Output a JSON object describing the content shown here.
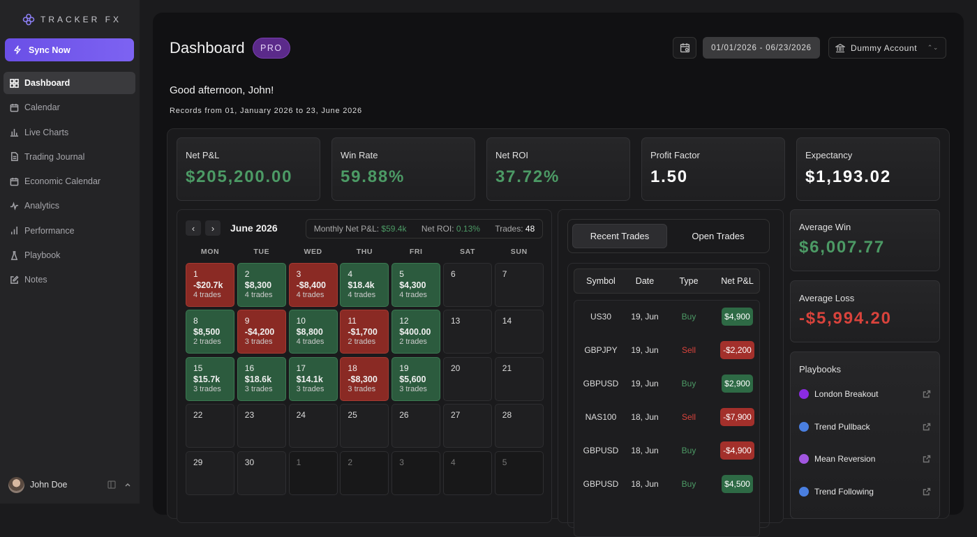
{
  "app": {
    "logo_text": "TRACKER FX"
  },
  "sidebar": {
    "sync_label": "Sync Now",
    "items": [
      {
        "label": "Dashboard",
        "icon": "grid-icon"
      },
      {
        "label": "Calendar",
        "icon": "calendar-icon"
      },
      {
        "label": "Live Charts",
        "icon": "bar-chart-icon"
      },
      {
        "label": "Trading Journal",
        "icon": "document-icon"
      },
      {
        "label": "Economic Calendar",
        "icon": "calendar-icon"
      },
      {
        "label": "Analytics",
        "icon": "activity-icon"
      },
      {
        "label": "Performance",
        "icon": "bar-chart-icon"
      },
      {
        "label": "Playbook",
        "icon": "flask-icon"
      },
      {
        "label": "Notes",
        "icon": "edit-icon"
      }
    ],
    "user_name": "John Doe"
  },
  "header": {
    "title": "Dashboard",
    "badge": "PRO",
    "date_range": "01/01/2026 - 06/23/2026",
    "account": "Dummy Account"
  },
  "greeting": "Good afternoon, John!",
  "records_text": "Records from 01, January 2026 to 23, June 2026",
  "stats": [
    {
      "label": "Net P&L",
      "value": "$205,200.00",
      "color": "green"
    },
    {
      "label": "Win Rate",
      "value": "59.88%",
      "color": "green"
    },
    {
      "label": "Net ROI",
      "value": "37.72%",
      "color": "green"
    },
    {
      "label": "Profit Factor",
      "value": "1.50",
      "color": "white"
    },
    {
      "label": "Expectancy",
      "value": "$1,193.02",
      "color": "white"
    }
  ],
  "calendar": {
    "month": "June 2026",
    "monthly_pnl_label": "Monthly Net P&L:",
    "monthly_pnl": "$59.4k",
    "net_roi_label": "Net ROI:",
    "net_roi": "0.13%",
    "trades_label": "Trades:",
    "trades": "48",
    "weekdays": [
      "MON",
      "TUE",
      "WED",
      "THU",
      "FRI",
      "SAT",
      "SUN"
    ],
    "days": [
      {
        "d": "1",
        "amt": "-$20.7k",
        "tr": "4 trades",
        "k": "loss"
      },
      {
        "d": "2",
        "amt": "$8,300",
        "tr": "4 trades",
        "k": "win"
      },
      {
        "d": "3",
        "amt": "-$8,400",
        "tr": "4 trades",
        "k": "loss"
      },
      {
        "d": "4",
        "amt": "$18.4k",
        "tr": "4 trades",
        "k": "win"
      },
      {
        "d": "5",
        "amt": "$4,300",
        "tr": "4 trades",
        "k": "win"
      },
      {
        "d": "6",
        "k": ""
      },
      {
        "d": "7",
        "k": ""
      },
      {
        "d": "8",
        "amt": "$8,500",
        "tr": "2 trades",
        "k": "win"
      },
      {
        "d": "9",
        "amt": "-$4,200",
        "tr": "3 trades",
        "k": "loss"
      },
      {
        "d": "10",
        "amt": "$8,800",
        "tr": "4 trades",
        "k": "win"
      },
      {
        "d": "11",
        "amt": "-$1,700",
        "tr": "2 trades",
        "k": "loss"
      },
      {
        "d": "12",
        "amt": "$400.00",
        "tr": "2 trades",
        "k": "win"
      },
      {
        "d": "13",
        "k": ""
      },
      {
        "d": "14",
        "k": ""
      },
      {
        "d": "15",
        "amt": "$15.7k",
        "tr": "3 trades",
        "k": "win"
      },
      {
        "d": "16",
        "amt": "$18.6k",
        "tr": "3 trades",
        "k": "win"
      },
      {
        "d": "17",
        "amt": "$14.1k",
        "tr": "3 trades",
        "k": "win"
      },
      {
        "d": "18",
        "amt": "-$8,300",
        "tr": "3 trades",
        "k": "loss"
      },
      {
        "d": "19",
        "amt": "$5,600",
        "tr": "3 trades",
        "k": "win"
      },
      {
        "d": "20",
        "k": ""
      },
      {
        "d": "21",
        "k": ""
      },
      {
        "d": "22",
        "k": ""
      },
      {
        "d": "23",
        "k": ""
      },
      {
        "d": "24",
        "k": ""
      },
      {
        "d": "25",
        "k": ""
      },
      {
        "d": "26",
        "k": ""
      },
      {
        "d": "27",
        "k": ""
      },
      {
        "d": "28",
        "k": ""
      },
      {
        "d": "29",
        "k": ""
      },
      {
        "d": "30",
        "k": ""
      },
      {
        "d": "1",
        "k": "out"
      },
      {
        "d": "2",
        "k": "out"
      },
      {
        "d": "3",
        "k": "out"
      },
      {
        "d": "4",
        "k": "out"
      },
      {
        "d": "5",
        "k": "out"
      }
    ]
  },
  "trades_panel": {
    "tabs": [
      "Recent Trades",
      "Open Trades"
    ],
    "columns": [
      "Symbol",
      "Date",
      "Type",
      "Net P&L"
    ],
    "rows": [
      {
        "symbol": "US30",
        "date": "19, Jun",
        "type": "Buy",
        "pnl": "$4,900",
        "pos": true
      },
      {
        "symbol": "GBPJPY",
        "date": "19, Jun",
        "type": "Sell",
        "pnl": "-$2,200",
        "pos": false
      },
      {
        "symbol": "GBPUSD",
        "date": "19, Jun",
        "type": "Buy",
        "pnl": "$2,900",
        "pos": true
      },
      {
        "symbol": "NAS100",
        "date": "18, Jun",
        "type": "Sell",
        "pnl": "-$7,900",
        "pos": false
      },
      {
        "symbol": "GBPUSD",
        "date": "18, Jun",
        "type": "Buy",
        "pnl": "-$4,900",
        "pos": false
      },
      {
        "symbol": "GBPUSD",
        "date": "18, Jun",
        "type": "Buy",
        "pnl": "$4,500",
        "pos": true
      }
    ]
  },
  "average_win": {
    "label": "Average Win",
    "value": "$6,007.77"
  },
  "average_loss": {
    "label": "Average Loss",
    "value": "-$5,994.20"
  },
  "playbooks": {
    "title": "Playbooks",
    "items": [
      {
        "name": "London Breakout",
        "color": "#8b2be2"
      },
      {
        "name": "Trend Pullback",
        "color": "#4a7fe0"
      },
      {
        "name": "Mean Reversion",
        "color": "#a156e0"
      },
      {
        "name": "Trend Following",
        "color": "#4a7fe0"
      }
    ]
  }
}
